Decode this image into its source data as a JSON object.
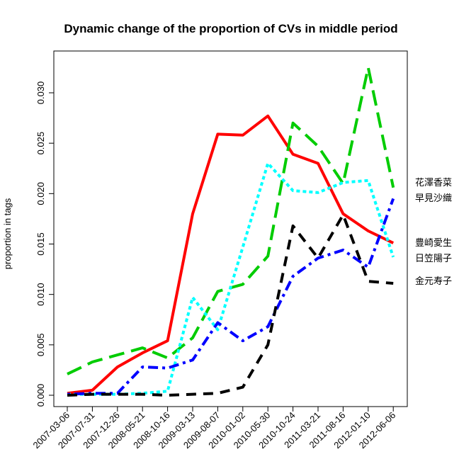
{
  "chart_data": {
    "type": "line",
    "title": "Dynamic change of the proportion of CVs in middle period",
    "xlabel": "",
    "ylabel": "proportion in tags",
    "ylim": [
      0,
      0.0335
    ],
    "grid": false,
    "legend": "right-outside",
    "y_ticks": [
      0.0,
      0.005,
      0.01,
      0.015,
      0.02,
      0.025,
      0.03
    ],
    "y_tick_labels": [
      "0.000",
      "0.005",
      "0.010",
      "0.015",
      "0.020",
      "0.025",
      "0.030"
    ],
    "categories": [
      "2007-03-06",
      "2007-07-31",
      "2007-12-26",
      "2008-05-21",
      "2008-10-16",
      "2009-03-13",
      "2009-08-07",
      "2010-01-02",
      "2010-05-30",
      "2010-10-24",
      "2011-03-21",
      "2011-08-16",
      "2012-01-10",
      "2012-06-06"
    ],
    "series": [
      {
        "name": "花澤香菜",
        "color": "#ff0000",
        "dash": "solid",
        "values": [
          0.0002,
          0.0005,
          0.0028,
          0.0042,
          0.0054,
          0.018,
          0.0259,
          0.0258,
          0.0277,
          0.0239,
          0.023,
          0.018,
          0.0163,
          0.0151
        ]
      },
      {
        "name": "早見沙織",
        "color": "#00cc00",
        "dash": "longdash",
        "values": [
          0.0021,
          0.0033,
          0.004,
          0.0047,
          0.0037,
          0.0057,
          0.0103,
          0.011,
          0.0138,
          0.027,
          0.0247,
          0.021,
          0.0325,
          0.0206
        ]
      },
      {
        "name": "豊崎愛生",
        "color": "#00ffff",
        "dash": "dotted",
        "values": [
          0.0001,
          0.0001,
          0.0001,
          0.0002,
          0.0004,
          0.0097,
          0.0065,
          0.0147,
          0.023,
          0.0203,
          0.0201,
          0.0211,
          0.0213,
          0.0137
        ]
      },
      {
        "name": "日笠陽子",
        "color": "#0000ff",
        "dash": "dotdash",
        "values": [
          0.0001,
          0.0002,
          0.0002,
          0.0028,
          0.0027,
          0.0035,
          0.0072,
          0.0054,
          0.0068,
          0.0118,
          0.0136,
          0.0144,
          0.0127,
          0.0195
        ]
      },
      {
        "name": "金元寿子",
        "color": "#000000",
        "dash": "dashed",
        "values": [
          0.0,
          0.0001,
          0.0001,
          0.0001,
          0.0,
          0.0001,
          0.0002,
          0.0008,
          0.005,
          0.0168,
          0.0136,
          0.0179,
          0.0113,
          0.0111
        ]
      }
    ]
  }
}
